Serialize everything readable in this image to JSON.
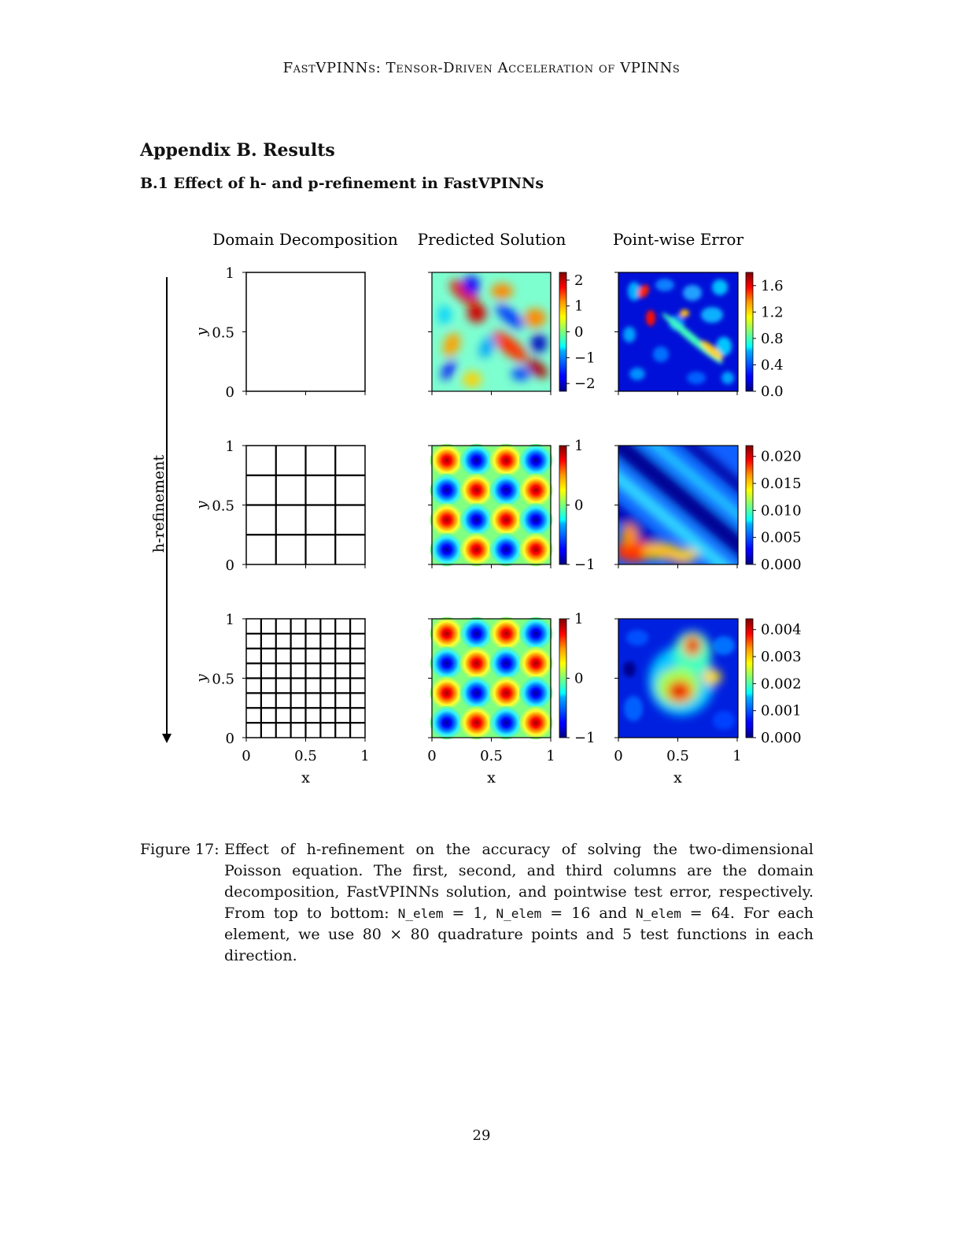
{
  "header": {
    "running_title": "FastVPINNs: Tensor-Driven Acceleration of VPINNs"
  },
  "appendix": {
    "title": "Appendix B.  Results"
  },
  "section": {
    "title": "B.1  Effect of h- and p-refinement in FastVPINNs"
  },
  "figure": {
    "column_titles": [
      "Domain Decomposition",
      "Predicted Solution",
      "Point-wise Error"
    ],
    "row_axis_label": "h-refinement",
    "x_axis_label": "x",
    "y_axis_label": "y",
    "x_ticks": [
      "0",
      "0.5",
      "1"
    ],
    "y_ticks": [
      "1",
      "0.5",
      "0"
    ],
    "rows": [
      {
        "grid_divisions": 1,
        "solution_colorbar": {
          "ticks": [
            "2",
            "1",
            "0",
            "−1",
            "−2"
          ],
          "range": [
            -2.3,
            2.3
          ]
        },
        "error_colorbar": {
          "ticks": [
            "1.6",
            "1.2",
            "0.8",
            "0.4",
            "0.0"
          ],
          "range": [
            0,
            1.8
          ]
        }
      },
      {
        "grid_divisions": 4,
        "solution_colorbar": {
          "ticks": [
            "1",
            "0",
            "−1"
          ],
          "range": [
            -1,
            1
          ]
        },
        "error_colorbar": {
          "ticks": [
            "0.020",
            "0.015",
            "0.010",
            "0.005",
            "0.000"
          ],
          "range": [
            0,
            0.022
          ]
        }
      },
      {
        "grid_divisions": 8,
        "solution_colorbar": {
          "ticks": [
            "1",
            "0",
            "−1"
          ],
          "range": [
            -1,
            1
          ]
        },
        "error_colorbar": {
          "ticks": [
            "0.004",
            "0.003",
            "0.002",
            "0.001",
            "0.000"
          ],
          "range": [
            0,
            0.0044
          ]
        }
      }
    ],
    "colormap": "jet"
  },
  "caption": {
    "label": "Figure 17:",
    "text_1": "Effect of h-refinement on the accuracy of solving the two-dimensional Poisson equation. The first, second, and third columns are the domain decomposition, FastVPINNs solution, and pointwise test error, respectively. From top to bottom: ",
    "code_var": "N_elem",
    "eq_1": " = 1, ",
    "eq_2": " = 16 and ",
    "eq_3": " = 64. For each element, we use 80 × 80 quadrature points and 5 test functions in each direction."
  },
  "page": {
    "number": "29"
  }
}
